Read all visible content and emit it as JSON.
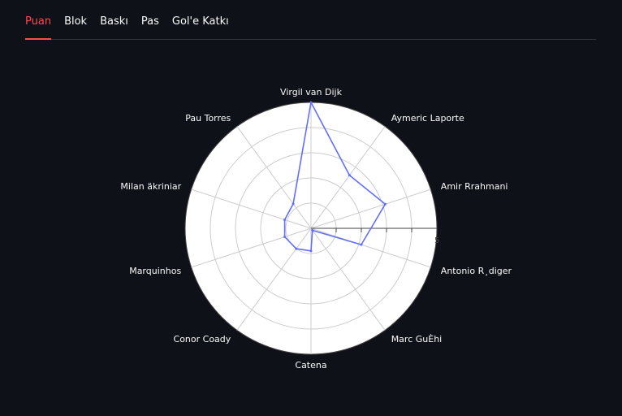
{
  "tabs": [
    {
      "label": "Puan",
      "active": true
    },
    {
      "label": "Blok",
      "active": false
    },
    {
      "label": "Baskı",
      "active": false
    },
    {
      "label": "Pas",
      "active": false
    },
    {
      "label": "Gol'e Katkı",
      "active": false
    }
  ],
  "chart_data": {
    "type": "radar",
    "title": "",
    "categories": [
      "Virgil van Dijk",
      "Aymeric Laporte",
      "Amir Rrahmani",
      "Antonio R¸diger",
      "Marc GuÈhi",
      "Catena",
      "Conor Coady",
      "Marquinhos",
      "Milan äkriniar",
      "Pau Torres"
    ],
    "series": [
      {
        "values": [
          5.0,
          2.6,
          3.1,
          2.1,
          0.1,
          0.9,
          1.0,
          1.1,
          1.1,
          1.2
        ]
      }
    ],
    "radial_range": [
      0,
      5
    ],
    "radial_ticks": [
      1,
      2,
      3,
      4,
      5
    ],
    "radial_tick_labels": [
      "",
      "",
      "",
      "",
      "5"
    ],
    "grid": true,
    "line_color": "#636efa",
    "background": "#ffffff",
    "page_background": "#0e1117"
  }
}
